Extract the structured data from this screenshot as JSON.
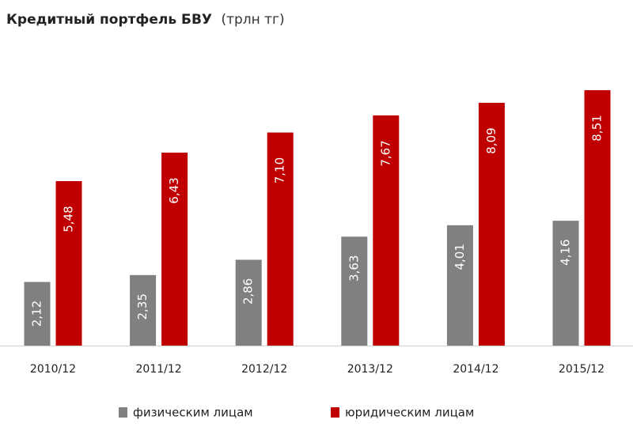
{
  "chart_data": {
    "type": "bar",
    "title": "Кредитный портфель БВУ",
    "subtitle": "(трлн тг)",
    "categories": [
      "2010/12",
      "2011/12",
      "2012/12",
      "2013/12",
      "2014/12",
      "2015/12"
    ],
    "series": [
      {
        "name": "физическим лицам",
        "color": "#808080",
        "values": [
          2.12,
          2.35,
          2.86,
          3.63,
          4.01,
          4.16
        ],
        "value_labels": [
          "2,12",
          "2,35",
          "2,86",
          "3,63",
          "4,01",
          "4,16"
        ]
      },
      {
        "name": "юридическим лицам",
        "color": "#c00000",
        "values": [
          5.48,
          6.43,
          7.1,
          7.67,
          8.09,
          8.51
        ],
        "value_labels": [
          "5,48",
          "6,43",
          "7,10",
          "7,67",
          "8,09",
          "8,51"
        ]
      }
    ]
  }
}
